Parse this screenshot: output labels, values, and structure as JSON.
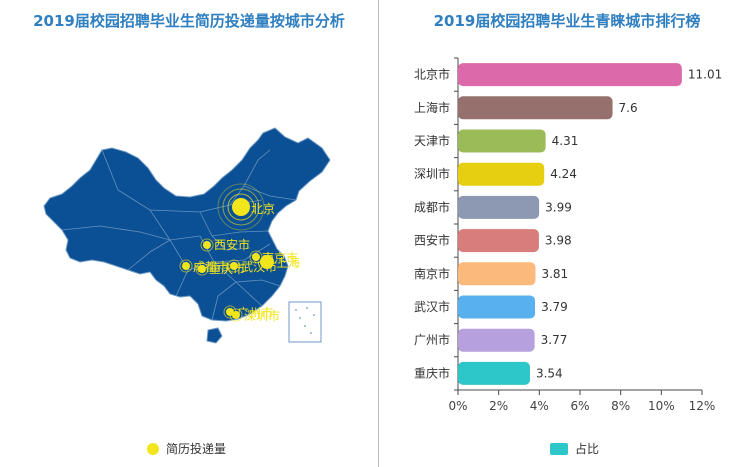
{
  "left": {
    "title": "2019届校园招聘毕业生简历投递量按城市分析",
    "legend_label": "简历投递量",
    "colors": {
      "map": "#0b4f94",
      "border": "#6f9ac6",
      "marker": "#f2e51c"
    },
    "markers": [
      {
        "label": "北京"
      },
      {
        "label": "西安市"
      },
      {
        "label": "成都市"
      },
      {
        "label": "重庆市"
      },
      {
        "label": "南京市"
      },
      {
        "label": "武汉市"
      },
      {
        "label": "上海"
      },
      {
        "label": "广州市"
      },
      {
        "label": "深圳市"
      }
    ]
  },
  "right": {
    "title": "2019届校园招聘毕业生青睐城市排行榜",
    "legend_label": "占比"
  },
  "chart_data": {
    "type": "bar",
    "orientation": "horizontal",
    "categories": [
      "北京市",
      "上海市",
      "天津市",
      "深圳市",
      "成都市",
      "西安市",
      "南京市",
      "武汉市",
      "广州市",
      "重庆市"
    ],
    "values": [
      11.01,
      7.6,
      4.31,
      4.24,
      3.99,
      3.98,
      3.81,
      3.79,
      3.77,
      3.54
    ],
    "colors": [
      "#dc69aa",
      "#95706d",
      "#9bbb59",
      "#e6cf11",
      "#8d98b3",
      "#d87c7c",
      "#fcb97c",
      "#59b0ee",
      "#b7a0de",
      "#2ec7c9"
    ],
    "series": [
      {
        "name": "占比",
        "values": [
          11.01,
          7.6,
          4.31,
          4.24,
          3.99,
          3.98,
          3.81,
          3.79,
          3.77,
          3.54
        ]
      }
    ],
    "xlim": [
      0,
      12
    ],
    "xticks": [
      "0%",
      "2%",
      "4%",
      "6%",
      "8%",
      "10%",
      "12%"
    ],
    "legend_position": "bottom",
    "legend_color": "#2ec7c9"
  }
}
